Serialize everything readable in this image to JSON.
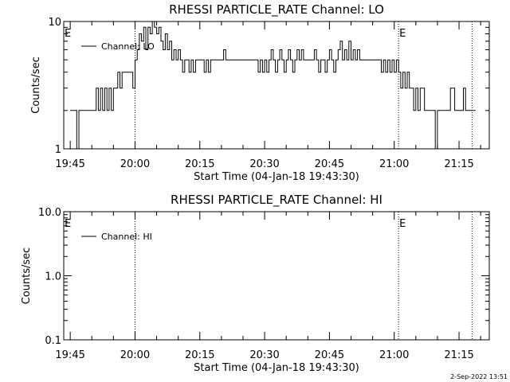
{
  "chart_data": [
    {
      "type": "line",
      "title": "RHESSI PARTICLE_RATE Channel: LO",
      "xlabel": "Start Time (04-Jan-18 19:43:30)",
      "ylabel": "Counts/sec",
      "y_scale": "log",
      "xlim": [
        "19:43:30",
        "21:22:00"
      ],
      "ylim": [
        1,
        10
      ],
      "x_tick_labels": [
        "19:45",
        "20:00",
        "20:15",
        "20:30",
        "20:45",
        "21:00",
        "21:15"
      ],
      "y_tick_labels": [
        "1",
        "10"
      ],
      "legend": {
        "placement": "top-left",
        "entries": [
          "Channel: LO"
        ]
      },
      "event_markers": [
        {
          "label": "E",
          "time": "19:43:30"
        },
        {
          "label": "E",
          "time": "21:01:00"
        }
      ],
      "dotted_lines": [
        "20:00",
        "21:01",
        "21:18"
      ],
      "grid": false,
      "series": [
        {
          "name": "Channel: LO",
          "x": [
            "19:45:00",
            "19:46:00",
            "19:46:30",
            "19:47:00",
            "19:48:00",
            "19:50:00",
            "19:51:00",
            "19:51:30",
            "19:52:00",
            "19:52:30",
            "19:53:00",
            "19:53:30",
            "19:54:00",
            "19:54:30",
            "19:55:00",
            "19:55:30",
            "19:56:00",
            "19:56:30",
            "19:57:00",
            "19:58:00",
            "19:59:00",
            "19:59:30",
            "20:00:00",
            "20:00:30",
            "20:01:00",
            "20:01:30",
            "20:02:00",
            "20:02:30",
            "20:03:00",
            "20:03:30",
            "20:04:00",
            "20:04:30",
            "20:05:00",
            "20:05:30",
            "20:06:00",
            "20:06:30",
            "20:07:00",
            "20:07:30",
            "20:08:00",
            "20:08:30",
            "20:09:00",
            "20:09:30",
            "20:10:00",
            "20:10:30",
            "20:11:00",
            "20:11:30",
            "20:12:00",
            "20:12:30",
            "20:13:00",
            "20:13:30",
            "20:14:00",
            "20:15:00",
            "20:15:30",
            "20:16:00",
            "20:16:30",
            "20:17:00",
            "20:17:30",
            "20:18:00",
            "20:19:00",
            "20:20:00",
            "20:20:30",
            "20:21:00",
            "20:21:30",
            "20:22:00",
            "20:23:00",
            "20:24:00",
            "20:25:00",
            "20:26:00",
            "20:27:00",
            "20:28:00",
            "20:28:30",
            "20:29:00",
            "20:29:30",
            "20:30:00",
            "20:30:30",
            "20:31:00",
            "20:31:30",
            "20:32:00",
            "20:32:30",
            "20:33:00",
            "20:33:30",
            "20:34:00",
            "20:34:30",
            "20:35:00",
            "20:35:30",
            "20:36:00",
            "20:36:30",
            "20:37:00",
            "20:37:30",
            "20:38:00",
            "20:38:30",
            "20:39:00",
            "20:39:30",
            "20:40:00",
            "20:40:30",
            "20:41:00",
            "20:41:30",
            "20:42:00",
            "20:42:30",
            "20:43:00",
            "20:43:30",
            "20:44:00",
            "20:44:30",
            "20:45:00",
            "20:45:30",
            "20:46:00",
            "20:46:30",
            "20:47:00",
            "20:47:30",
            "20:48:00",
            "20:48:30",
            "20:49:00",
            "20:49:30",
            "20:50:00",
            "20:50:30",
            "20:51:00",
            "20:51:30",
            "20:52:00",
            "20:52:30",
            "20:53:00",
            "20:54:00",
            "20:55:00",
            "20:56:00",
            "20:57:00",
            "20:57:30",
            "20:58:00",
            "20:58:30",
            "20:59:00",
            "20:59:30",
            "21:00:00",
            "21:00:30",
            "21:01:00",
            "21:01:30",
            "21:02:00",
            "21:02:30",
            "21:03:00",
            "21:03:30",
            "21:04:00",
            "21:04:30",
            "21:05:00",
            "21:05:30",
            "21:06:00",
            "21:07:00",
            "21:08:00",
            "21:08:30",
            "21:09:00",
            "21:09:30",
            "21:10:00",
            "21:10:30",
            "21:11:00",
            "21:11:30",
            "21:12:00",
            "21:12:30",
            "21:13:00",
            "21:14:00",
            "21:14:30",
            "21:15:00",
            "21:16:00",
            "21:16:30",
            "21:17:00"
          ],
          "y": [
            2,
            2,
            1,
            2,
            2,
            2,
            3,
            2,
            3,
            2,
            3,
            2,
            3,
            2,
            3,
            3,
            4,
            3,
            4,
            4,
            4,
            3,
            5,
            6,
            8,
            7,
            9,
            6,
            9,
            8,
            10,
            9,
            8,
            9,
            7,
            6,
            8,
            6,
            7,
            5,
            6,
            5,
            6,
            5,
            4,
            5,
            5,
            4,
            5,
            4,
            5,
            5,
            5,
            4,
            5,
            4,
            5,
            5,
            5,
            5,
            6,
            5,
            5,
            5,
            5,
            5,
            5,
            5,
            5,
            5,
            4,
            5,
            4,
            5,
            4,
            5,
            6,
            5,
            4,
            5,
            6,
            5,
            4,
            5,
            6,
            5,
            4,
            5,
            6,
            5,
            6,
            5,
            5,
            5,
            5,
            5,
            6,
            5,
            4,
            5,
            5,
            4,
            5,
            6,
            5,
            4,
            5,
            6,
            7,
            5,
            6,
            5,
            7,
            5,
            6,
            5,
            6,
            5,
            5,
            5,
            5,
            5,
            5,
            4,
            5,
            4,
            5,
            4,
            5,
            4,
            5,
            4,
            3,
            4,
            3,
            4,
            3,
            3,
            2,
            3,
            2,
            3,
            2,
            2,
            2,
            2,
            1,
            2,
            2,
            2,
            2,
            2,
            2,
            3,
            2,
            2,
            2,
            3,
            2,
            2
          ]
        }
      ]
    },
    {
      "type": "line",
      "title": "RHESSI PARTICLE_RATE Channel: HI",
      "xlabel": "Start Time (04-Jan-18 19:43:30)",
      "ylabel": "Counts/sec",
      "y_scale": "log",
      "xlim": [
        "19:43:30",
        "21:22:00"
      ],
      "ylim": [
        0.1,
        10.0
      ],
      "x_tick_labels": [
        "19:45",
        "20:00",
        "20:15",
        "20:30",
        "20:45",
        "21:00",
        "21:15"
      ],
      "y_tick_labels": [
        "0.1",
        "1.0",
        "10.0"
      ],
      "legend": {
        "placement": "top-left",
        "entries": [
          "Channel: HI"
        ]
      },
      "event_markers": [
        {
          "label": "E",
          "time": "19:43:30"
        },
        {
          "label": "E",
          "time": "21:01:00"
        }
      ],
      "dotted_lines": [
        "20:00",
        "21:01",
        "21:18"
      ],
      "grid": false,
      "series": [
        {
          "name": "Channel: HI",
          "x": [],
          "y": []
        }
      ]
    }
  ],
  "footer": {
    "timestamp": "2-Sep-2022 13:51"
  }
}
